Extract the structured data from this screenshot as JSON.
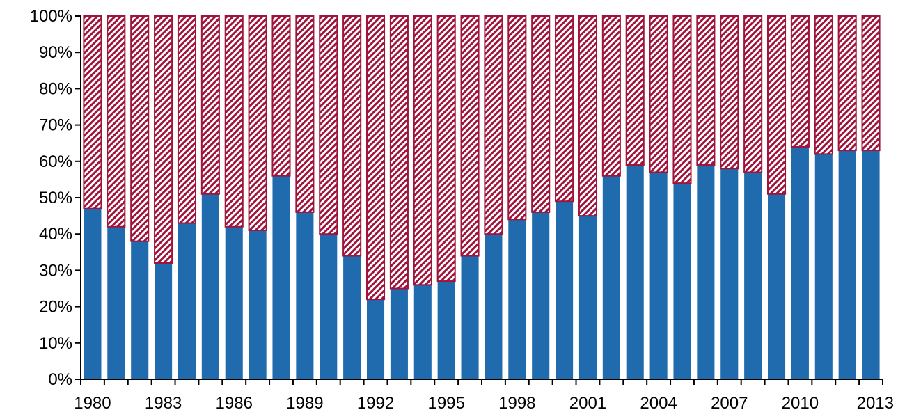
{
  "chart_data": {
    "type": "bar",
    "stacked": true,
    "categories": [
      "1980",
      "1981",
      "1982",
      "1983",
      "1984",
      "1985",
      "1986",
      "1987",
      "1988",
      "1989",
      "1990",
      "1991",
      "1992",
      "1993",
      "1994",
      "1995",
      "1996",
      "1997",
      "1998",
      "1999",
      "2000",
      "2001",
      "2002",
      "2003",
      "2004",
      "2005",
      "2006",
      "2007",
      "2008",
      "2009",
      "2010",
      "2011",
      "2012",
      "2013"
    ],
    "x_tick_labels": [
      "1980",
      "1983",
      "1986",
      "1989",
      "1992",
      "1995",
      "1998",
      "2001",
      "2004",
      "2007",
      "2010",
      "2013"
    ],
    "y_tick_labels": [
      "0%",
      "10%",
      "20%",
      "30%",
      "40%",
      "50%",
      "60%",
      "70%",
      "80%",
      "90%",
      "100%"
    ],
    "ylim": [
      0,
      100
    ],
    "title": "",
    "xlabel": "",
    "ylabel": "",
    "grid": false,
    "series": [
      {
        "color": "#1F6BAE",
        "fill": "solid",
        "values": [
          47,
          42,
          38,
          32,
          43,
          51,
          42,
          41,
          56,
          46,
          40,
          34,
          22,
          25,
          26,
          27,
          34,
          40,
          44,
          46,
          49,
          45,
          56,
          59,
          57,
          54,
          59,
          58,
          57,
          51,
          64,
          62,
          63,
          63
        ]
      },
      {
        "color": "#A0143C",
        "fill": "diagonal-hatch",
        "values": [
          53,
          58,
          62,
          68,
          57,
          49,
          58,
          59,
          44,
          54,
          60,
          66,
          78,
          75,
          74,
          73,
          66,
          60,
          56,
          54,
          51,
          55,
          44,
          41,
          43,
          46,
          41,
          42,
          43,
          49,
          36,
          38,
          37,
          37
        ]
      }
    ]
  }
}
